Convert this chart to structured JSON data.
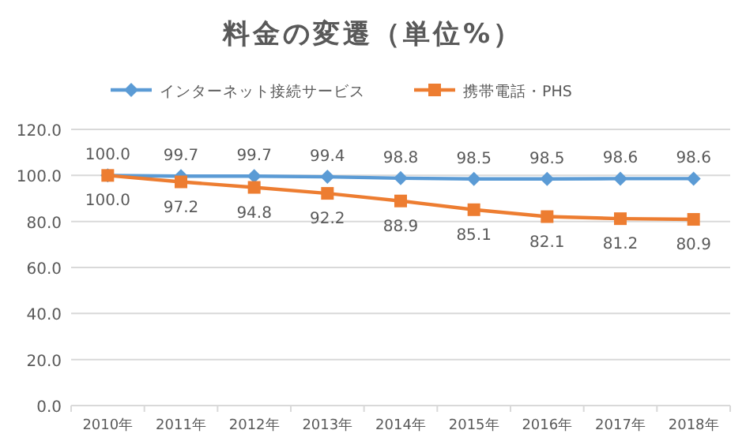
{
  "chart_data": {
    "type": "line",
    "title": "料金の変遷（単位%）",
    "categories": [
      "2010年",
      "2011年",
      "2012年",
      "2013年",
      "2014年",
      "2015年",
      "2016年",
      "2017年",
      "2018年"
    ],
    "series": [
      {
        "name": "インターネット接続サービス",
        "color": "#5b9bd5",
        "marker": "diamond",
        "values": [
          100.0,
          99.7,
          99.7,
          99.4,
          98.8,
          98.5,
          98.5,
          98.6,
          98.6
        ],
        "value_labels": [
          "100.0",
          "99.7",
          "99.7",
          "99.4",
          "98.8",
          "98.5",
          "98.5",
          "98.6",
          "98.6"
        ]
      },
      {
        "name": "携帯電話・PHS",
        "color": "#ed7d31",
        "marker": "square",
        "values": [
          100.0,
          97.2,
          94.8,
          92.2,
          88.9,
          85.1,
          82.1,
          81.2,
          80.9
        ],
        "value_labels": [
          "100.0",
          "97.2",
          "94.8",
          "92.2",
          "88.9",
          "85.1",
          "82.1",
          "81.2",
          "80.9"
        ]
      }
    ],
    "ylim": [
      0,
      120
    ],
    "yticks": [
      {
        "value": 0,
        "label": "0.0"
      },
      {
        "value": 20,
        "label": "20.0"
      },
      {
        "value": 40,
        "label": "40.0"
      },
      {
        "value": 60,
        "label": "60.0"
      },
      {
        "value": 80,
        "label": "80.0"
      },
      {
        "value": 100,
        "label": "100.0"
      },
      {
        "value": 120,
        "label": "120.0"
      }
    ],
    "grid": "y",
    "legend": "top",
    "line_style": "solid"
  }
}
